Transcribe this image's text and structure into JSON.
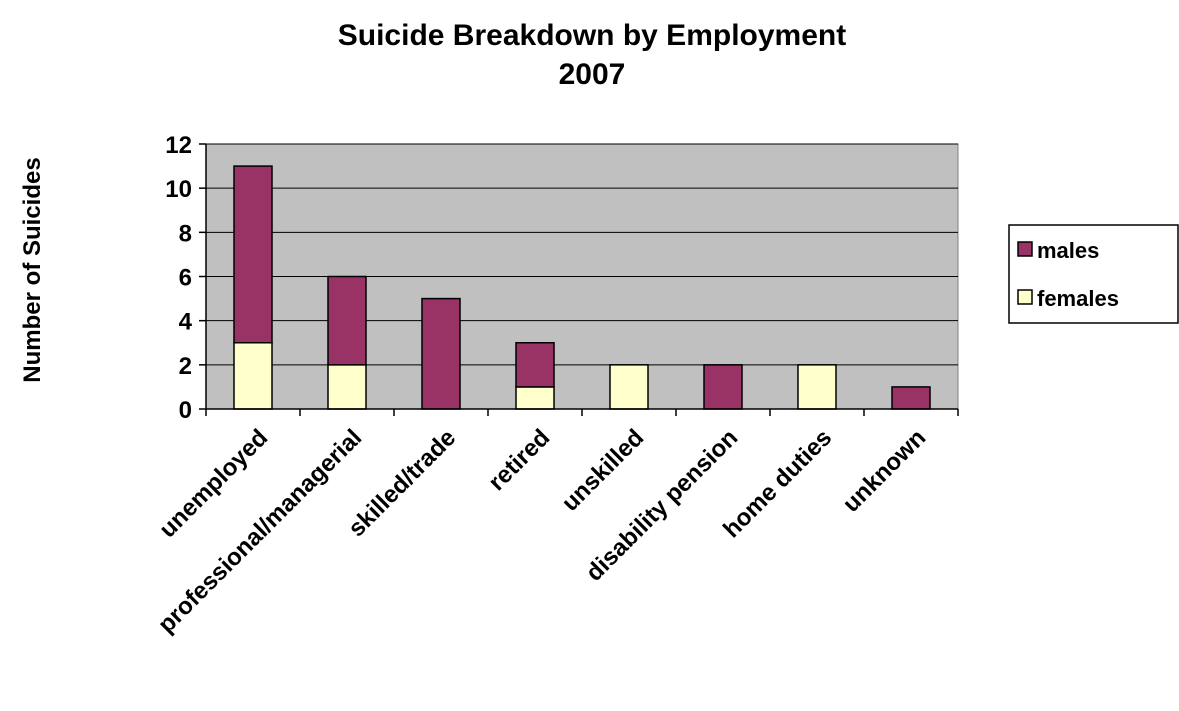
{
  "chart_data": {
    "type": "bar",
    "stacked": true,
    "title": [
      "Suicide Breakdown by Employment",
      "2007"
    ],
    "xlabel": "",
    "ylabel": "Number of Suicides",
    "ylim": [
      0,
      12
    ],
    "yticks": [
      0,
      2,
      4,
      6,
      8,
      10,
      12
    ],
    "grid": true,
    "legend_position": "right",
    "categories": [
      "unemployed",
      "professional/managerial",
      "skilled/trade",
      "retired",
      "unskilled",
      "disability pension",
      "home duties",
      "unknown"
    ],
    "series": [
      {
        "name": "females",
        "values": [
          3,
          2,
          0,
          1,
          2,
          0,
          2,
          0
        ],
        "color": "#FFFFCC"
      },
      {
        "name": "males",
        "values": [
          8,
          4,
          5,
          2,
          0,
          2,
          0,
          1
        ],
        "color": "#993366"
      }
    ],
    "plot_background": "#C0C0C0",
    "legend_order": [
      "males",
      "females"
    ]
  }
}
